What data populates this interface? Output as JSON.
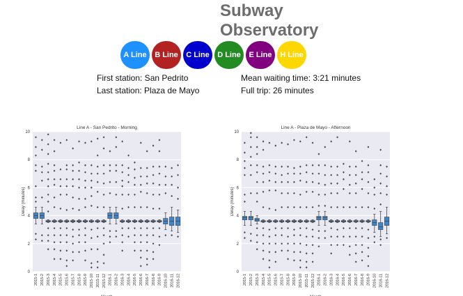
{
  "app": {
    "title_line1": "Subway",
    "title_line2": "Observatory"
  },
  "lines": [
    {
      "label": "A Line",
      "color": "#1e90ff"
    },
    {
      "label": "B Line",
      "color": "#b22222"
    },
    {
      "label": "C Line",
      "color": "#0000cd"
    },
    {
      "label": "D Line",
      "color": "#228b22"
    },
    {
      "label": "E Line",
      "color": "#800080"
    },
    {
      "label": "H Line",
      "color": "#ffd700"
    }
  ],
  "info": {
    "first_station": "First station: San Pedrito",
    "last_station": "Last station: Plaza de Mayo",
    "mean_waiting": "Mean waiting time: 3:21 minutes",
    "full_trip": "Full trip: 26 minutes"
  },
  "chart_data": [
    {
      "type": "box",
      "title": "Line A - San Pedrito - Morning",
      "xlabel": "Month",
      "ylabel": "Delay (minutes)",
      "ylim": [
        0,
        10
      ],
      "y_ticks": [
        "0",
        "2",
        "4",
        "6",
        "8",
        "10"
      ],
      "categories": [
        "2015-1",
        "2015-2",
        "2015-3",
        "2015-4",
        "2015-5",
        "2015-6",
        "2015-7",
        "2015-8",
        "2015-9",
        "2015-10",
        "2015-11",
        "2015-12",
        "2016-1",
        "2016-2",
        "2016-3",
        "2016-4",
        "2016-5",
        "2016-6",
        "2016-7",
        "2016-8",
        "2016-9",
        "2016-10",
        "2016-11",
        "2016-12"
      ],
      "boxes": [
        {
          "q1": 3.8,
          "med": 4.0,
          "q3": 4.2,
          "wlo": 3.4,
          "whi": 4.6
        },
        {
          "q1": 3.8,
          "med": 4.0,
          "q3": 4.2,
          "wlo": 3.4,
          "whi": 4.6
        },
        {
          "q1": 3.55,
          "med": 3.6,
          "q3": 3.65,
          "wlo": 3.5,
          "whi": 3.7
        },
        {
          "q1": 3.55,
          "med": 3.6,
          "q3": 3.65,
          "wlo": 3.5,
          "whi": 3.7
        },
        {
          "q1": 3.55,
          "med": 3.6,
          "q3": 3.65,
          "wlo": 3.5,
          "whi": 3.7
        },
        {
          "q1": 3.55,
          "med": 3.6,
          "q3": 3.65,
          "wlo": 3.5,
          "whi": 3.7
        },
        {
          "q1": 3.55,
          "med": 3.6,
          "q3": 3.65,
          "wlo": 3.5,
          "whi": 3.7
        },
        {
          "q1": 3.55,
          "med": 3.6,
          "q3": 3.65,
          "wlo": 3.5,
          "whi": 3.7
        },
        {
          "q1": 3.55,
          "med": 3.6,
          "q3": 3.65,
          "wlo": 3.5,
          "whi": 3.7
        },
        {
          "q1": 3.55,
          "med": 3.6,
          "q3": 3.65,
          "wlo": 3.5,
          "whi": 3.7
        },
        {
          "q1": 3.55,
          "med": 3.6,
          "q3": 3.65,
          "wlo": 3.5,
          "whi": 3.7
        },
        {
          "q1": 3.55,
          "med": 3.6,
          "q3": 3.65,
          "wlo": 3.5,
          "whi": 3.7
        },
        {
          "q1": 3.8,
          "med": 4.0,
          "q3": 4.2,
          "wlo": 3.4,
          "whi": 4.6
        },
        {
          "q1": 3.8,
          "med": 4.0,
          "q3": 4.2,
          "wlo": 3.4,
          "whi": 4.6
        },
        {
          "q1": 3.55,
          "med": 3.6,
          "q3": 3.65,
          "wlo": 3.5,
          "whi": 3.7
        },
        {
          "q1": 3.55,
          "med": 3.6,
          "q3": 3.65,
          "wlo": 3.5,
          "whi": 3.7
        },
        {
          "q1": 3.55,
          "med": 3.6,
          "q3": 3.65,
          "wlo": 3.5,
          "whi": 3.7
        },
        {
          "q1": 3.55,
          "med": 3.6,
          "q3": 3.65,
          "wlo": 3.5,
          "whi": 3.7
        },
        {
          "q1": 3.55,
          "med": 3.6,
          "q3": 3.65,
          "wlo": 3.5,
          "whi": 3.7
        },
        {
          "q1": 3.55,
          "med": 3.6,
          "q3": 3.65,
          "wlo": 3.5,
          "whi": 3.7
        },
        {
          "q1": 3.55,
          "med": 3.6,
          "q3": 3.65,
          "wlo": 3.5,
          "whi": 3.7
        },
        {
          "q1": 3.4,
          "med": 3.6,
          "q3": 3.8,
          "wlo": 3.0,
          "whi": 4.2
        },
        {
          "q1": 3.3,
          "med": 3.6,
          "q3": 3.9,
          "wlo": 2.9,
          "whi": 4.6
        },
        {
          "q1": 3.3,
          "med": 3.6,
          "q3": 3.9,
          "wlo": 2.8,
          "whi": 4.4
        }
      ],
      "outlier_rows": [
        [
          9.6,
          8.9,
          8.3,
          7.6,
          7.2,
          6.1,
          5.3,
          5.0,
          2.7,
          2.3
        ],
        [
          9.4,
          8.7,
          7.5,
          7.1,
          6.5,
          5.3,
          2.6,
          2.2
        ],
        [
          9.8,
          9.1,
          8.4,
          7.7,
          7.1,
          6.6,
          6.1,
          5.5,
          5.0,
          4.3,
          3.1,
          2.6,
          2.2,
          1.6
        ],
        [
          9.4,
          8.6,
          7.6,
          7.2,
          6.6,
          6.2,
          5.3,
          4.6,
          3.1,
          2.6,
          2.1,
          1.6,
          0.9
        ],
        [
          9.2,
          7.3,
          6.6,
          6.1,
          5.5,
          4.5,
          3.1,
          2.6,
          2.1,
          1.5,
          0.9
        ],
        [
          9.4,
          7.6,
          7.3,
          6.6,
          6.1,
          5.5,
          4.4,
          3.1,
          2.6,
          2.1,
          1.5,
          0.8,
          0.4
        ],
        [
          8.8,
          7.6,
          7.2,
          6.6,
          6.1,
          5.3,
          4.5,
          3.0,
          2.5,
          2.0,
          1.4,
          0.8
        ],
        [
          9.3,
          7.8,
          7.2,
          6.6,
          6.0,
          5.2,
          4.4,
          3.0,
          2.6,
          2.1,
          1.4
        ],
        [
          9.2,
          7.6,
          7.1,
          6.5,
          6.0,
          5.2,
          4.6,
          3.1,
          2.6,
          2.1,
          1.5,
          0.8
        ],
        [
          9.3,
          7.6,
          7.0,
          6.5,
          6.0,
          5.4,
          4.7,
          3.0,
          2.4,
          1.6,
          0.6,
          0.3
        ],
        [
          9.5,
          8.3,
          7.5,
          7.0,
          6.4,
          5.7,
          4.6,
          3.1,
          2.5,
          1.6,
          0.7,
          0.3
        ],
        [
          9.6,
          8.8,
          7.6,
          7.0,
          6.3,
          5.5,
          4.6,
          3.1,
          2.6,
          2.0,
          1.2,
          0.6
        ],
        [
          8.6,
          7.6,
          7.2,
          6.4,
          5.6,
          2.9,
          2.5,
          2.1
        ],
        [
          9.6,
          8.9,
          7.6,
          7.2,
          6.4,
          5.5,
          2.9,
          2.5
        ],
        [
          9.3,
          7.6,
          7.1,
          6.5,
          6.1,
          5.5,
          4.5,
          3.1,
          2.6,
          2.1,
          1.5
        ],
        [
          8.3,
          7.4,
          6.9,
          6.4,
          5.5,
          4.6,
          3.1,
          2.5
        ],
        [
          7.8,
          7.3,
          6.7,
          6.2,
          5.5,
          4.6,
          3.1,
          2.6,
          2.1,
          1.5
        ],
        [
          9.2,
          7.4,
          6.8,
          6.2,
          5.7,
          4.6,
          3.1,
          2.6,
          2.1,
          1.5,
          1.0,
          0.4
        ],
        [
          8.6,
          7.4,
          6.8,
          6.3,
          5.6,
          4.6,
          3.1,
          2.6,
          2.1,
          1.5,
          0.9,
          0.5
        ],
        [
          9.0,
          7.5,
          6.9,
          6.3,
          5.5,
          4.5,
          3.1,
          2.6,
          2.0,
          1.4,
          0.9
        ],
        [
          9.4,
          8.6,
          7.5,
          7.0,
          6.2,
          5.5,
          4.5,
          3.1,
          2.5,
          1.9
        ],
        [
          7.5,
          6.8,
          6.2,
          5.6,
          2.6
        ],
        [
          7.4,
          6.8,
          6.2,
          5.4,
          2.6
        ],
        [
          7.6,
          6.9,
          6.0,
          5.2,
          2.5
        ]
      ]
    },
    {
      "type": "box",
      "title": "Line A - Plaza de Mayo - Afternoon",
      "xlabel": "Month",
      "ylabel": "Delay (minutes)",
      "ylim": [
        0,
        10
      ],
      "y_ticks": [
        "0",
        "2",
        "4",
        "6",
        "8",
        "10"
      ],
      "categories": [
        "2015-1",
        "2015-2",
        "2015-3",
        "2015-4",
        "2015-5",
        "2015-6",
        "2015-7",
        "2015-8",
        "2015-9",
        "2015-10",
        "2015-11",
        "2015-12",
        "2016-1",
        "2016-2",
        "2016-3",
        "2016-4",
        "2016-5",
        "2016-6",
        "2016-7",
        "2016-8",
        "2016-9",
        "2016-10",
        "2016-11",
        "2016-12"
      ],
      "boxes": [
        {
          "q1": 3.7,
          "med": 3.85,
          "q3": 3.95,
          "wlo": 3.3,
          "whi": 4.3
        },
        {
          "q1": 3.7,
          "med": 3.85,
          "q3": 3.95,
          "wlo": 3.3,
          "whi": 4.3
        },
        {
          "q1": 3.6,
          "med": 3.7,
          "q3": 3.8,
          "wlo": 3.4,
          "whi": 4.0
        },
        {
          "q1": 3.55,
          "med": 3.6,
          "q3": 3.65,
          "wlo": 3.5,
          "whi": 3.7
        },
        {
          "q1": 3.55,
          "med": 3.6,
          "q3": 3.65,
          "wlo": 3.5,
          "whi": 3.7
        },
        {
          "q1": 3.55,
          "med": 3.6,
          "q3": 3.65,
          "wlo": 3.5,
          "whi": 3.7
        },
        {
          "q1": 3.55,
          "med": 3.6,
          "q3": 3.65,
          "wlo": 3.5,
          "whi": 3.7
        },
        {
          "q1": 3.55,
          "med": 3.6,
          "q3": 3.65,
          "wlo": 3.5,
          "whi": 3.7
        },
        {
          "q1": 3.55,
          "med": 3.6,
          "q3": 3.65,
          "wlo": 3.5,
          "whi": 3.7
        },
        {
          "q1": 3.55,
          "med": 3.6,
          "q3": 3.65,
          "wlo": 3.5,
          "whi": 3.7
        },
        {
          "q1": 3.55,
          "med": 3.6,
          "q3": 3.65,
          "wlo": 3.5,
          "whi": 3.7
        },
        {
          "q1": 3.55,
          "med": 3.6,
          "q3": 3.65,
          "wlo": 3.5,
          "whi": 3.7
        },
        {
          "q1": 3.7,
          "med": 3.85,
          "q3": 3.95,
          "wlo": 3.3,
          "whi": 4.3
        },
        {
          "q1": 3.7,
          "med": 3.85,
          "q3": 3.95,
          "wlo": 3.3,
          "whi": 4.3
        },
        {
          "q1": 3.55,
          "med": 3.6,
          "q3": 3.65,
          "wlo": 3.5,
          "whi": 3.7
        },
        {
          "q1": 3.55,
          "med": 3.6,
          "q3": 3.65,
          "wlo": 3.5,
          "whi": 3.7
        },
        {
          "q1": 3.55,
          "med": 3.6,
          "q3": 3.65,
          "wlo": 3.5,
          "whi": 3.7
        },
        {
          "q1": 3.55,
          "med": 3.6,
          "q3": 3.65,
          "wlo": 3.5,
          "whi": 3.7
        },
        {
          "q1": 3.55,
          "med": 3.6,
          "q3": 3.65,
          "wlo": 3.5,
          "whi": 3.7
        },
        {
          "q1": 3.55,
          "med": 3.6,
          "q3": 3.65,
          "wlo": 3.5,
          "whi": 3.7
        },
        {
          "q1": 3.55,
          "med": 3.6,
          "q3": 3.65,
          "wlo": 3.5,
          "whi": 3.7
        },
        {
          "q1": 3.3,
          "med": 3.5,
          "q3": 3.7,
          "wlo": 2.8,
          "whi": 4.1
        },
        {
          "q1": 3.0,
          "med": 3.2,
          "q3": 3.5,
          "wlo": 2.5,
          "whi": 4.3
        },
        {
          "q1": 3.3,
          "med": 3.6,
          "q3": 3.9,
          "wlo": 2.7,
          "whi": 4.6
        }
      ],
      "outlier_rows": [
        [
          9.2,
          8.5,
          7.9,
          7.4,
          6.9,
          5.5,
          5.0,
          2.8,
          2.4
        ],
        [
          9.9,
          9.6,
          8.9,
          8.2,
          7.6,
          6.9,
          5.6,
          2.7,
          2.2
        ],
        [
          9.6,
          8.9,
          8.4,
          7.6,
          7.1,
          6.4,
          5.6,
          5.0,
          3.1,
          2.6,
          2.1,
          1.6
        ],
        [
          9.3,
          8.7,
          7.5,
          7.0,
          6.4,
          5.7,
          4.6,
          3.1,
          2.6,
          2.0,
          1.5,
          0.9
        ],
        [
          9.2,
          7.6,
          7.1,
          6.5,
          5.8,
          4.5,
          3.0,
          2.5,
          2.0,
          1.4,
          0.8,
          0.3
        ],
        [
          9.0,
          7.5,
          7.0,
          6.4,
          5.8,
          4.4,
          3.1,
          2.6,
          2.0,
          1.4,
          0.7
        ],
        [
          9.2,
          7.5,
          6.9,
          6.4,
          5.6,
          4.6,
          3.1,
          2.6,
          2.0,
          1.5
        ],
        [
          9.1,
          7.5,
          7.0,
          6.4,
          5.6,
          4.6,
          3.1,
          2.5,
          2.0,
          1.5,
          0.9
        ],
        [
          9.4,
          7.4,
          7.0,
          6.4,
          5.6,
          4.6,
          3.0,
          2.6,
          2.0,
          1.4,
          0.8
        ],
        [
          9.3,
          7.5,
          7.0,
          6.5,
          5.5,
          4.6,
          3.1,
          2.6,
          2.0,
          1.4,
          0.8,
          0.3
        ],
        [
          9.6,
          7.6,
          7.1,
          6.4,
          5.7,
          4.6,
          3.1,
          2.5,
          1.9,
          1.3,
          0.7,
          0.3
        ],
        [
          9.2,
          7.6,
          7.0,
          6.4,
          5.7,
          4.6,
          3.0,
          2.5,
          1.9,
          1.3,
          0.7
        ],
        [
          8.4,
          7.6,
          7.0,
          6.3,
          5.5,
          4.7,
          2.9,
          2.4,
          1.8
        ],
        [
          8.9,
          7.6,
          6.9,
          6.2,
          5.5,
          4.7,
          2.9,
          2.4
        ],
        [
          9.3,
          7.5,
          6.9,
          6.3,
          5.6,
          4.6,
          3.1,
          2.5,
          1.9,
          1.3
        ],
        [
          9.6,
          7.5,
          6.9,
          6.3,
          5.6,
          4.6,
          3.0,
          2.5,
          1.9
        ],
        [
          7.7,
          7.1,
          6.6,
          5.9,
          4.6,
          3.1,
          2.5,
          1.9
        ],
        [
          9.3,
          7.5,
          6.9,
          6.2,
          5.6,
          4.6,
          3.1,
          2.5,
          1.8,
          1.2
        ],
        [
          8.6,
          7.5,
          6.9,
          6.3,
          5.6,
          4.6,
          3.1,
          2.5,
          1.9,
          1.3,
          0.7
        ],
        [
          7.9,
          7.1,
          6.6,
          5.9,
          4.6,
          3.1,
          2.5,
          1.9,
          1.4,
          0.8
        ],
        [
          8.9,
          7.6,
          7.1,
          6.4,
          5.6,
          4.6,
          3.0,
          2.4,
          1.7,
          1.1,
          0.4
        ],
        [
          6.6,
          6.0,
          5.5,
          4.5,
          2.5,
          2.1
        ],
        [
          8.7,
          7.6,
          7.0,
          6.3,
          5.6,
          4.8,
          2.3,
          1.9
        ],
        [
          7.5,
          6.8,
          6.1,
          5.5,
          2.4
        ]
      ]
    }
  ]
}
